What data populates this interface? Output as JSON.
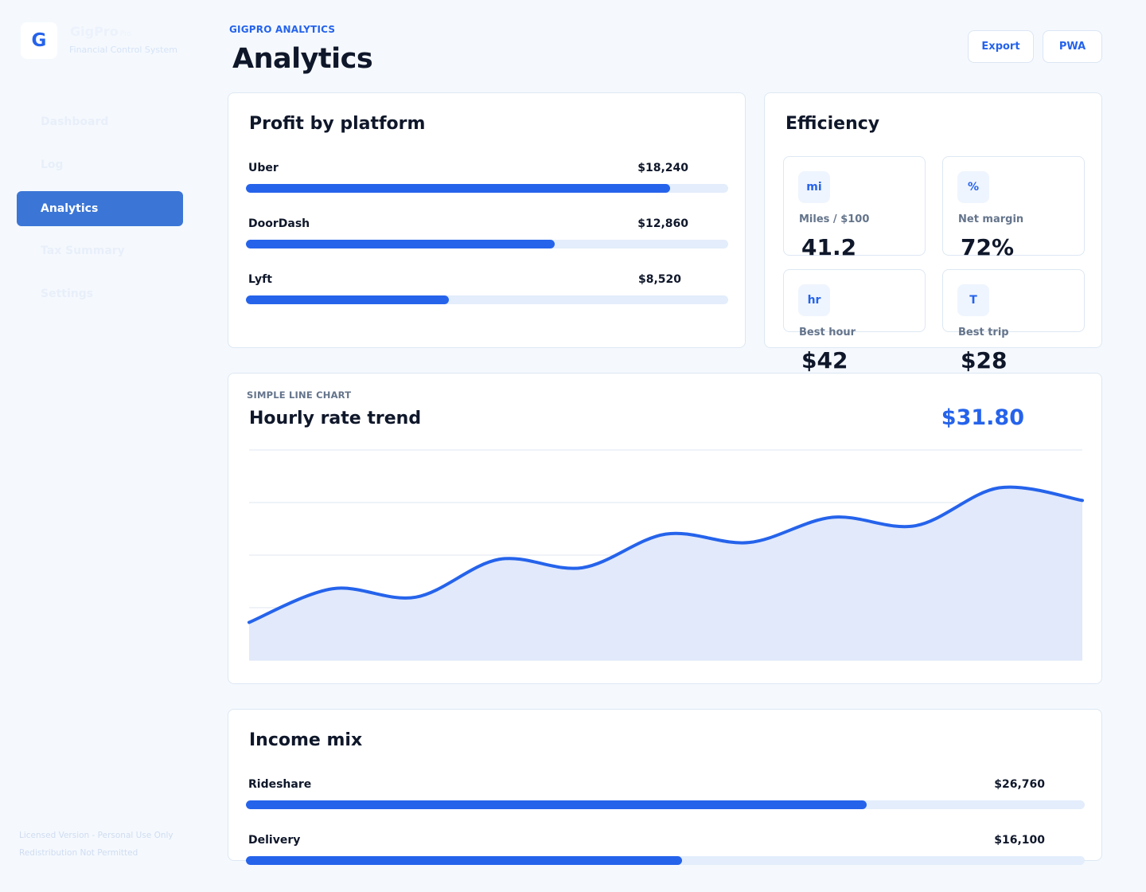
{
  "brand": {
    "logo_letter": "G",
    "name": "GigPro",
    "tag": "Pro",
    "subtitle": "Financial Control System"
  },
  "nav": [
    {
      "label": "Dashboard",
      "active": false
    },
    {
      "label": "Log",
      "active": false
    },
    {
      "label": "Analytics",
      "active": true
    },
    {
      "label": "Tax Summary",
      "active": false
    },
    {
      "label": "Settings",
      "active": false
    }
  ],
  "license": {
    "line1": "Licensed Version - Personal Use Only",
    "line2": "Redistribution Not Permitted"
  },
  "header": {
    "eyebrow": "GIGPRO ANALYTICS",
    "title": "Analytics",
    "export_label": "Export",
    "pwa_label": "PWA"
  },
  "profit": {
    "title": "Profit by platform",
    "rows": [
      {
        "label": "Uber",
        "value": "$18,240",
        "fraction": 0.88
      },
      {
        "label": "DoorDash",
        "value": "$12,860",
        "fraction": 0.64
      },
      {
        "label": "Lyft",
        "value": "$8,520",
        "fraction": 0.42
      }
    ]
  },
  "efficiency": {
    "title": "Efficiency",
    "tiles": [
      {
        "badge": "mi",
        "label": "Miles / $100",
        "value": "41.2"
      },
      {
        "badge": "%",
        "label": "Net margin",
        "value": "72%"
      },
      {
        "badge": "hr",
        "label": "Best hour",
        "value": "$42"
      },
      {
        "badge": "T",
        "label": "Best trip",
        "value": "$28"
      }
    ]
  },
  "trend": {
    "eyebrow": "SIMPLE LINE CHART",
    "title": "Hourly rate trend",
    "current": "$31.80"
  },
  "chart_data": {
    "type": "area",
    "title": "Hourly rate trend",
    "x": [
      0,
      1,
      2,
      3,
      4,
      5,
      6,
      7,
      8,
      9,
      10
    ],
    "values": [
      9,
      17,
      15,
      24,
      22,
      30,
      28,
      34,
      32,
      41,
      38
    ],
    "ylim": [
      0,
      50
    ],
    "grid": true,
    "legend": "none",
    "color": "#2563eb"
  },
  "income": {
    "title": "Income mix",
    "rows": [
      {
        "label": "Rideshare",
        "value": "$26,760",
        "fraction": 0.74
      },
      {
        "label": "Delivery",
        "value": "$16,100",
        "fraction": 0.52
      }
    ]
  },
  "colors": {
    "accent": "#2563eb",
    "nav_active": "#3b76d6",
    "track": "#e3edfb",
    "area_fill": "#e1e9fb"
  }
}
